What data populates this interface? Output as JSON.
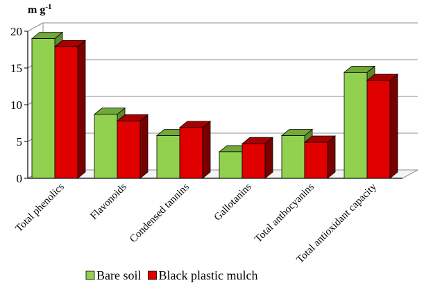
{
  "chart_data": {
    "type": "bar",
    "style": "3d-clustered",
    "ylabel": "m g",
    "ylabel_superscript": "-1",
    "ylim": [
      0,
      20
    ],
    "yticks": [
      0,
      5,
      10,
      15,
      20
    ],
    "grid": true,
    "legend_position": "bottom",
    "categories": [
      "Total phenolics",
      "Flavonoids",
      "Condensed tannins",
      "Gallotanins",
      "Total anthocyanins",
      "Total antioxidant capacity"
    ],
    "series": [
      {
        "name": "Bare soil",
        "values": [
          19.0,
          8.7,
          5.8,
          3.6,
          5.8,
          14.4
        ],
        "color": "#92d050",
        "top_color": "#71a83a",
        "side_color": "#5e8c2c"
      },
      {
        "name": "Black plastic mulch",
        "values": [
          17.9,
          7.8,
          6.9,
          4.7,
          4.9,
          13.3
        ],
        "color": "#e00000",
        "top_color": "#a80000",
        "side_color": "#7a0000"
      }
    ]
  }
}
